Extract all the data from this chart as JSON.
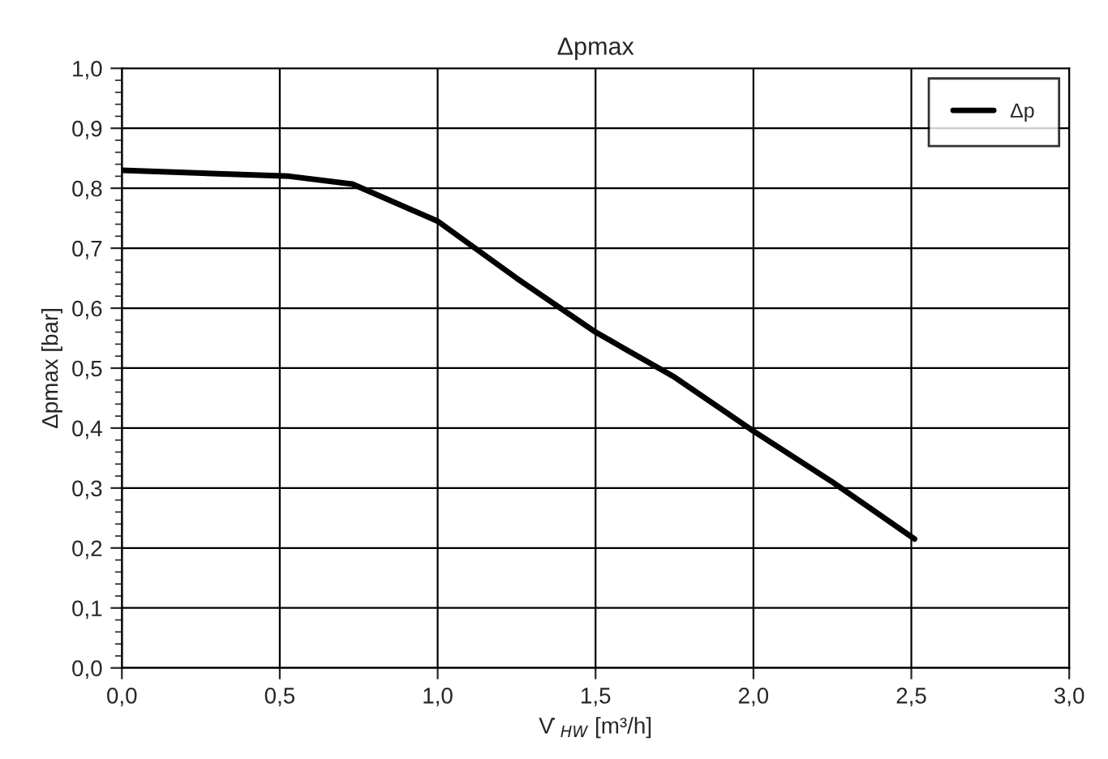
{
  "chart_data": {
    "type": "line",
    "title": "Δpmax",
    "xlabel": "V̇ $_{HW}$ [m³/h]",
    "ylabel": "Δpmax [bar]",
    "x": [
      0,
      0.53,
      0.73,
      1.0,
      1.25,
      1.5,
      1.75,
      2.0,
      2.25,
      2.51
    ],
    "series": [
      {
        "name": "Δp",
        "color": "#000000",
        "values": [
          0.83,
          0.82,
          0.807,
          0.745,
          0.65,
          0.56,
          0.485,
          0.395,
          0.31,
          0.215
        ]
      }
    ],
    "xlim": [
      0,
      3
    ],
    "xticks": [
      {
        "value": 0,
        "label": "0,0"
      },
      {
        "value": 0.5,
        "label": "0,5"
      },
      {
        "value": 1,
        "label": "1,0"
      },
      {
        "value": 1.5,
        "label": "1,5"
      },
      {
        "value": 2,
        "label": "2,0"
      },
      {
        "value": 2.5,
        "label": "2,5"
      },
      {
        "value": 3,
        "label": "3,0"
      }
    ],
    "ylim": [
      0,
      1
    ],
    "yticks": [
      {
        "value": 0,
        "label": "0,0"
      },
      {
        "value": 0.1,
        "label": "0,1"
      },
      {
        "value": 0.2,
        "label": "0,2"
      },
      {
        "value": 0.3,
        "label": "0,3"
      },
      {
        "value": 0.4,
        "label": "0,4"
      },
      {
        "value": 0.5,
        "label": "0,5"
      },
      {
        "value": 0.6,
        "label": "0,6"
      },
      {
        "value": 0.7,
        "label": "0,7"
      },
      {
        "value": 0.8,
        "label": "0,8"
      },
      {
        "value": 0.9,
        "label": "0,9"
      },
      {
        "value": 1,
        "label": "1,0"
      }
    ],
    "grid": true,
    "legend": "top right",
    "marker": "none",
    "line_style": "solid"
  }
}
